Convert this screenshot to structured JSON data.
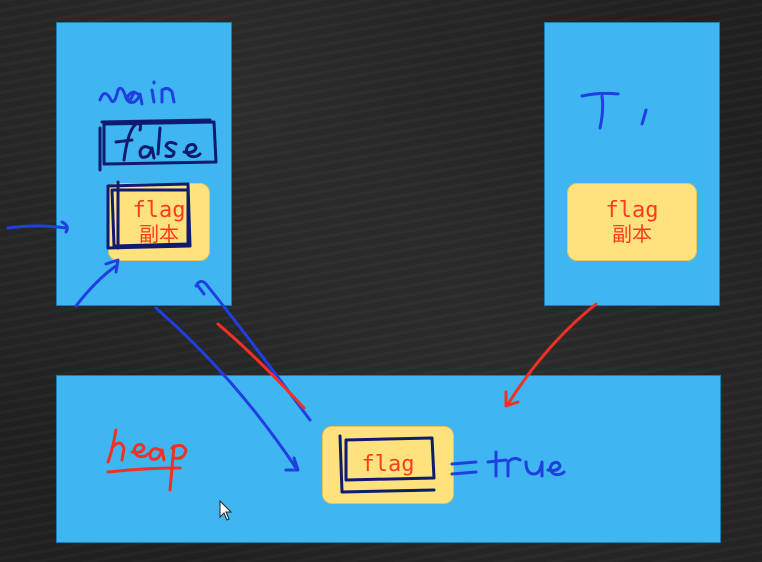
{
  "diagram": {
    "threads": [
      {
        "id": "main",
        "card": {
          "name": "flag",
          "subtitle": "副本"
        }
      },
      {
        "id": "t1",
        "card": {
          "name": "flag",
          "subtitle": "副本"
        }
      }
    ],
    "heap": {
      "card": {
        "name": "flag"
      }
    }
  },
  "handwriting": {
    "main_label": "main",
    "main_value": "false",
    "t1_label": "T1",
    "heap_label": "heap",
    "heap_value": "= true"
  },
  "colors": {
    "board": "#202020",
    "box": "#3fb6f1",
    "card": "#fde27e",
    "card_text": "#ff3b1f",
    "ink_blue": "#1f3fe0",
    "ink_red": "#f23024"
  }
}
